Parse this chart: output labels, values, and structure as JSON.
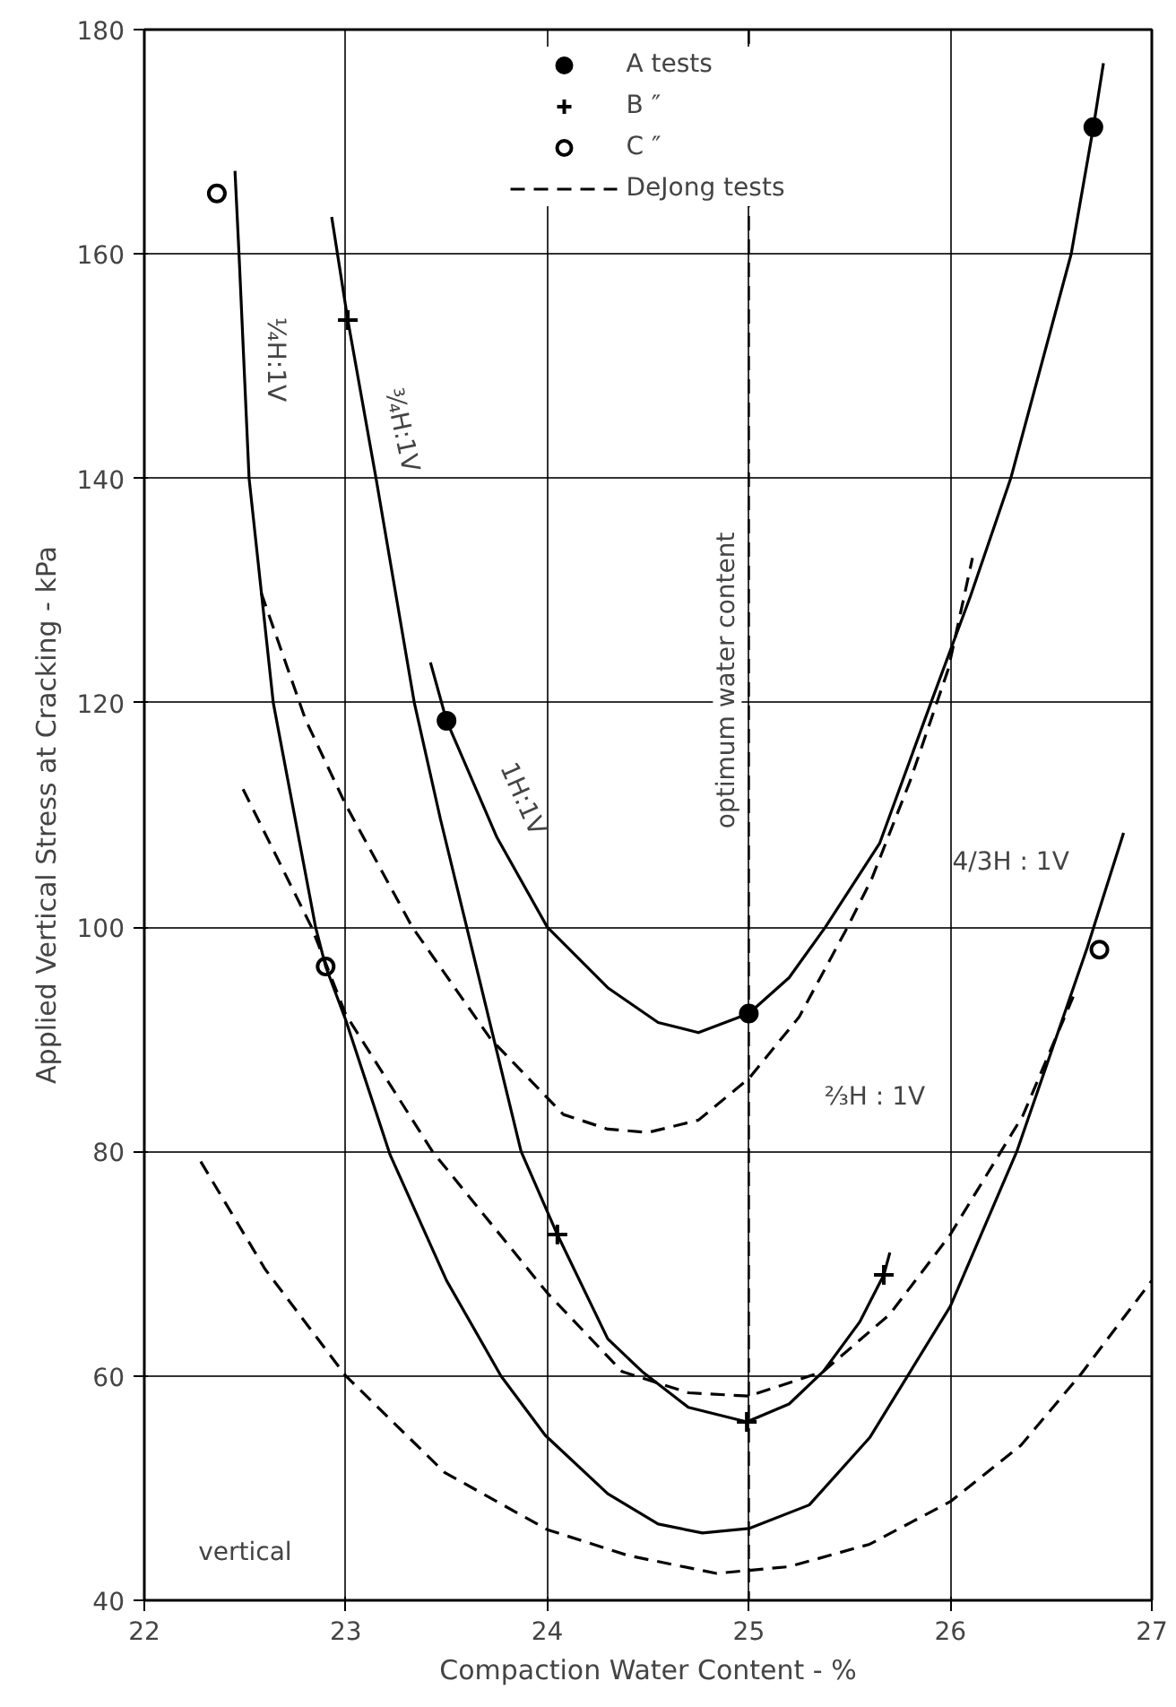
{
  "chart_data": {
    "type": "line",
    "xlabel": "Compaction Water Content - %",
    "ylabel": "Applied Vertical Stress at Cracking - kPa",
    "xlim": [
      22,
      27
    ],
    "ylim": [
      40,
      180
    ],
    "xticks": [
      22,
      23,
      24,
      25,
      26,
      27
    ],
    "yticks": [
      40,
      60,
      80,
      100,
      120,
      140,
      160,
      180
    ],
    "grid": true,
    "legend": "top",
    "series": [
      {
        "type": "scatter",
        "name": "A tests",
        "marker": "circle",
        "color": "#000000",
        "x": [
          23.5,
          25.0,
          26.71
        ],
        "values": [
          118.4,
          92.3,
          171.3
        ]
      },
      {
        "type": "scatter",
        "name": "B ″",
        "marker": "cross",
        "color": "#000000",
        "x": [
          23.01,
          24.05,
          24.99,
          25.67
        ],
        "values": [
          154.1,
          72.6,
          55.9,
          69.0
        ]
      },
      {
        "type": "scatter",
        "name": "C ″",
        "marker": "circle",
        "color": "#ffffff",
        "x": [
          22.36,
          22.9,
          26.74
        ],
        "values": [
          165.4,
          96.5,
          98.0
        ]
      },
      {
        "line_style": "solid",
        "color": "#000000",
        "x": [
          22.45,
          22.47,
          22.52,
          22.64,
          22.85,
          22.9,
          23.0,
          23.22,
          23.5,
          23.77,
          23.99,
          24.3,
          24.55,
          24.77,
          25.0,
          25.3,
          25.6,
          26.0,
          26.33,
          26.68,
          26.86
        ],
        "values": [
          167.4,
          160,
          140,
          120,
          100,
          96.5,
          91.7,
          79.7,
          68.5,
          60,
          54.7,
          49.5,
          46.8,
          46.0,
          46.4,
          48.5,
          54.5,
          66.2,
          80,
          98.2,
          108.4
        ]
      },
      {
        "line_style": "solid",
        "color": "#000000",
        "x": [
          22.93,
          23.01,
          23.15,
          23.34,
          23.47,
          23.6,
          23.87,
          24.05,
          24.3,
          24.47,
          24.7,
          24.99,
          25.2,
          25.37,
          25.55,
          25.67,
          25.7
        ],
        "values": [
          163.3,
          154.1,
          140,
          120,
          109.6,
          100,
          80,
          72.6,
          63.3,
          60.4,
          57.2,
          55.9,
          57.5,
          60.4,
          64.8,
          69.0,
          71.0
        ]
      },
      {
        "line_style": "solid",
        "color": "#000000",
        "x": [
          23.42,
          23.5,
          23.75,
          24.0,
          24.3,
          24.55,
          24.75,
          25.0,
          25.2,
          25.38,
          25.65,
          25.91,
          26.1,
          26.3,
          26.6,
          26.71,
          26.76
        ],
        "values": [
          123.6,
          118.4,
          108.0,
          100,
          94.6,
          91.5,
          90.6,
          92.3,
          95.5,
          100,
          107.5,
          120.3,
          129.5,
          140,
          160,
          171.3,
          177
        ]
      },
      {
        "line_style": "dashed",
        "name": "DeJong tests",
        "color": "#000000",
        "x": [
          22.58,
          22.8,
          23.0,
          23.33,
          23.72,
          24.08,
          24.3,
          24.5,
          24.75,
          25.0,
          25.25,
          25.49,
          25.61,
          25.8,
          25.99,
          26.11
        ],
        "values": [
          129.8,
          118.5,
          110.9,
          100,
          90,
          83.3,
          82.0,
          81.7,
          82.8,
          86.5,
          92.0,
          100,
          104.3,
          113,
          123,
          132.9
        ]
      },
      {
        "line_style": "dashed",
        "color": "#000000",
        "x": [
          22.49,
          22.83,
          23.0,
          23.43,
          24.0,
          24.37,
          24.7,
          25.0,
          25.37,
          25.7,
          26.0,
          26.36,
          26.61
        ],
        "values": [
          112.3,
          100,
          92.2,
          80,
          67.4,
          60.4,
          58.5,
          58.2,
          60.4,
          65.5,
          72.6,
          83.2,
          93.8
        ]
      },
      {
        "line_style": "dashed",
        "color": "#000000",
        "x": [
          22.28,
          22.6,
          23.0,
          23.49,
          24.0,
          24.4,
          24.84,
          25.2,
          25.6,
          26.0,
          26.35,
          26.65,
          27.0
        ],
        "values": [
          79.1,
          69.5,
          60,
          51.4,
          46.3,
          44.0,
          42.4,
          43.0,
          45.0,
          48.8,
          53.8,
          60.2,
          68.5
        ]
      }
    ],
    "ref_lines": [
      {
        "axis": "x",
        "value": 25,
        "label": "optimum water content",
        "line_style": "dashed"
      }
    ],
    "annotations": [
      "¼H:1V",
      "¾H:1V",
      "1H:1V",
      "4/3H : 1V",
      "⅔H : 1V",
      "vertical"
    ]
  }
}
